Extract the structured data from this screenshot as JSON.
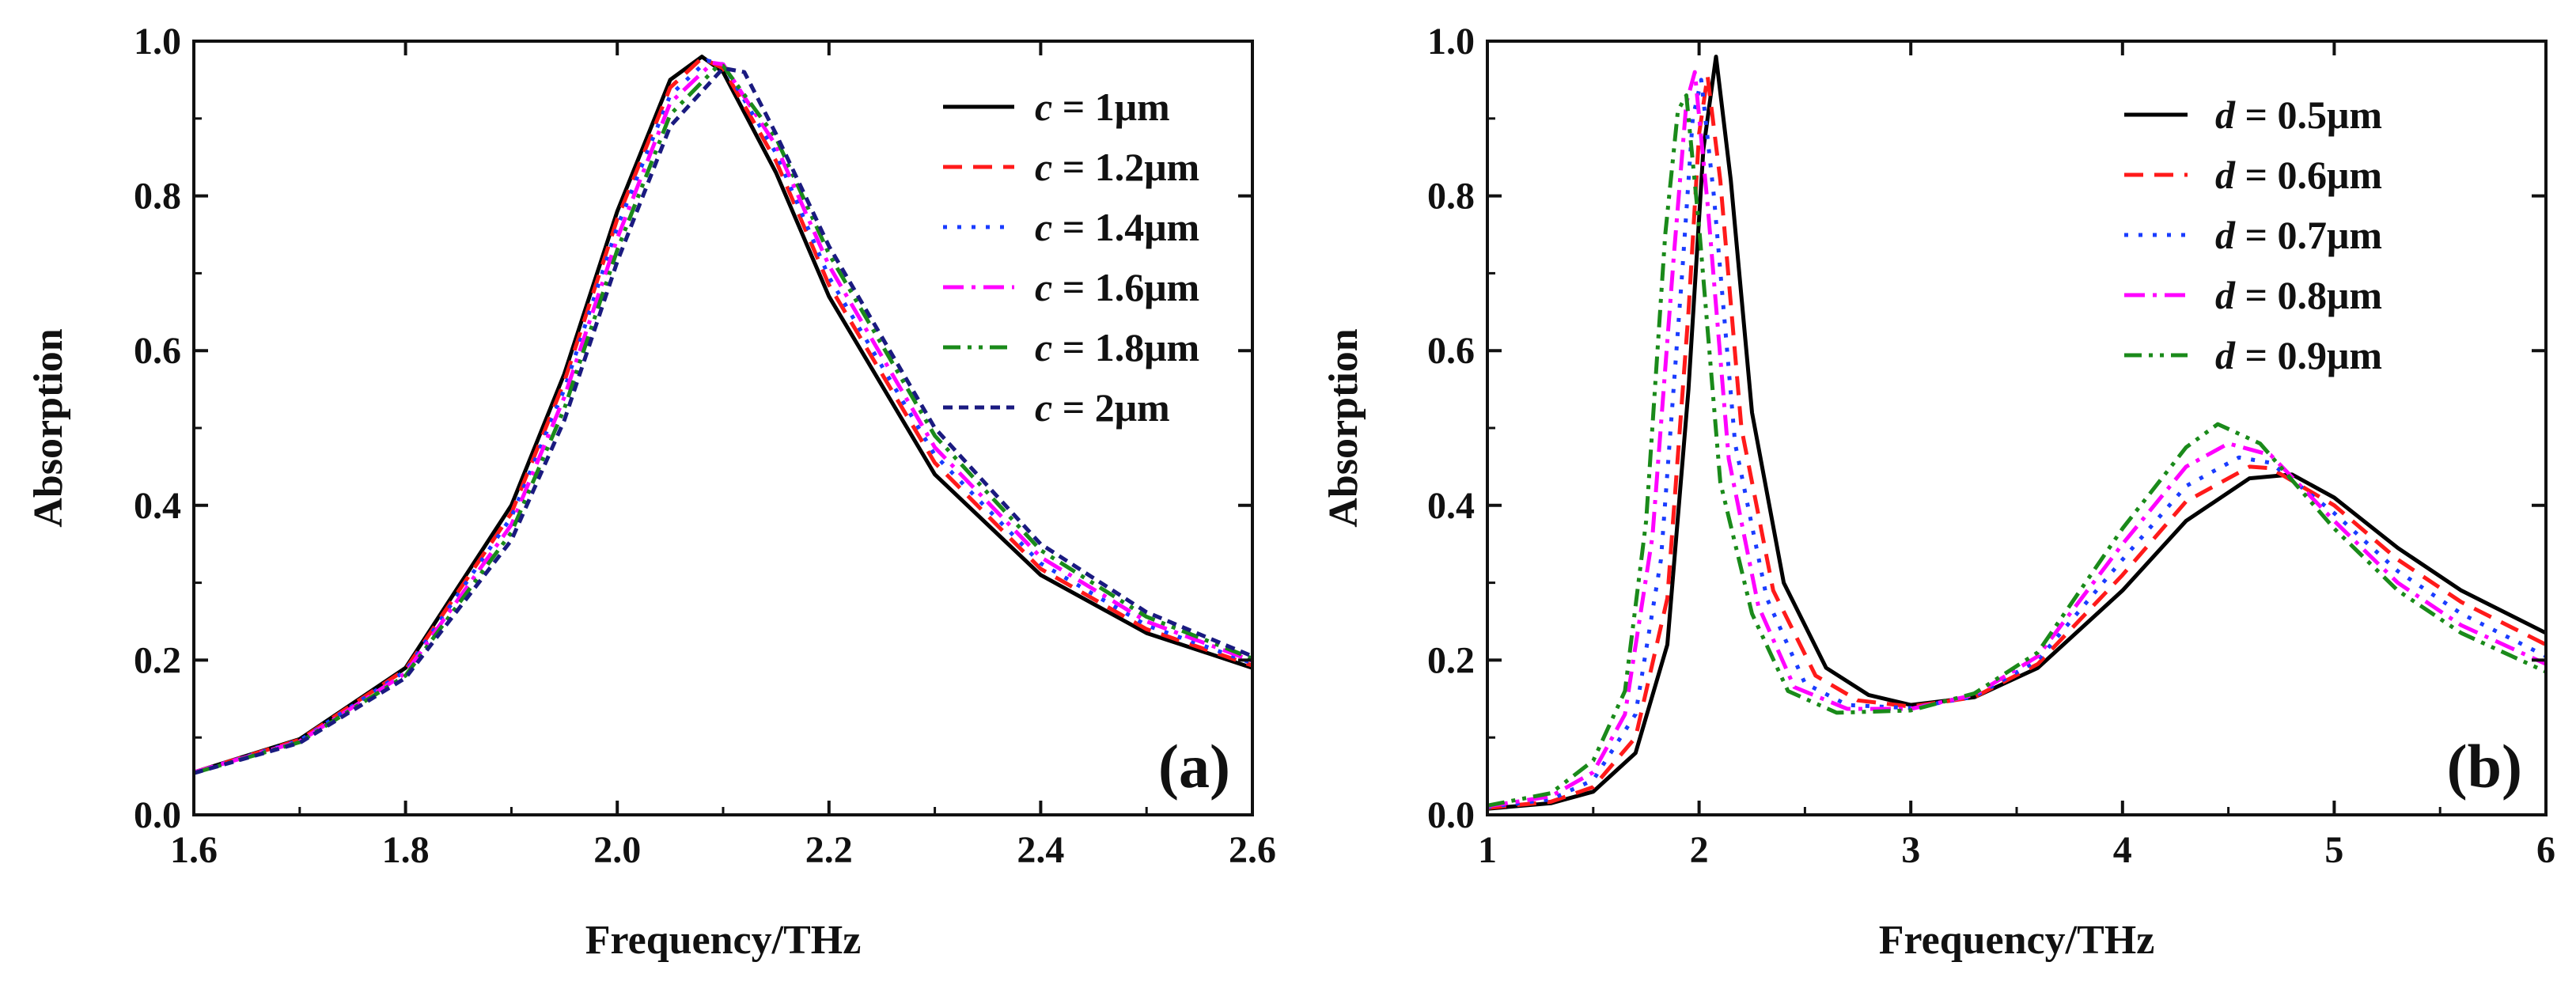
{
  "chart_data": [
    {
      "type": "line",
      "panel_label": "(a)",
      "xlabel": "Frequency/THz",
      "ylabel": "Absorption",
      "xlim": [
        1.6,
        2.6
      ],
      "ylim": [
        0.0,
        1.0
      ],
      "xticks": [
        "1.6",
        "1.8",
        "2.0",
        "2.2",
        "2.4",
        "2.6"
      ],
      "yticks": [
        "0.0",
        "0.2",
        "0.4",
        "0.6",
        "0.8",
        "1.0"
      ],
      "legend_position": "top-right",
      "series": [
        {
          "name": "c = 1μm",
          "var": "c",
          "value": "1μm",
          "color": "#000000",
          "dash": "solid",
          "x": [
            1.6,
            1.7,
            1.8,
            1.9,
            1.95,
            2.0,
            2.05,
            2.08,
            2.1,
            2.15,
            2.2,
            2.3,
            2.4,
            2.5,
            2.6
          ],
          "y": [
            0.055,
            0.098,
            0.19,
            0.4,
            0.57,
            0.78,
            0.95,
            0.98,
            0.96,
            0.83,
            0.67,
            0.44,
            0.31,
            0.235,
            0.19
          ]
        },
        {
          "name": "c = 1.2μm",
          "var": "c",
          "value": "1.2μm",
          "color": "#ff1a1a",
          "dash": "long-dash",
          "x": [
            1.6,
            1.7,
            1.8,
            1.9,
            1.95,
            2.0,
            2.05,
            2.08,
            2.1,
            2.15,
            2.2,
            2.3,
            2.4,
            2.5,
            2.6
          ],
          "y": [
            0.055,
            0.097,
            0.188,
            0.39,
            0.56,
            0.77,
            0.94,
            0.978,
            0.965,
            0.845,
            0.685,
            0.455,
            0.318,
            0.24,
            0.193
          ]
        },
        {
          "name": "c = 1.4μm",
          "var": "c",
          "value": "1.4μm",
          "color": "#1a3cff",
          "dash": "dot",
          "x": [
            1.6,
            1.7,
            1.8,
            1.9,
            1.95,
            2.0,
            2.05,
            2.085,
            2.1,
            2.15,
            2.2,
            2.3,
            2.4,
            2.5,
            2.6
          ],
          "y": [
            0.055,
            0.096,
            0.186,
            0.385,
            0.55,
            0.76,
            0.93,
            0.975,
            0.97,
            0.855,
            0.695,
            0.465,
            0.325,
            0.245,
            0.196
          ]
        },
        {
          "name": "c = 1.6μm",
          "var": "c",
          "value": "1.6μm",
          "color": "#ff00ff",
          "dash": "dash-dot",
          "x": [
            1.6,
            1.7,
            1.8,
            1.9,
            1.95,
            2.0,
            2.05,
            2.09,
            2.1,
            2.15,
            2.2,
            2.3,
            2.4,
            2.5,
            2.6
          ],
          "y": [
            0.055,
            0.095,
            0.183,
            0.375,
            0.54,
            0.745,
            0.92,
            0.972,
            0.97,
            0.865,
            0.71,
            0.475,
            0.333,
            0.25,
            0.199
          ]
        },
        {
          "name": "c = 1.8μm",
          "var": "c",
          "value": "1.8μm",
          "color": "#1a8a1a",
          "dash": "dash-dot-dot",
          "x": [
            1.6,
            1.7,
            1.8,
            1.9,
            1.95,
            2.0,
            2.05,
            2.095,
            2.1,
            2.15,
            2.2,
            2.3,
            2.4,
            2.5,
            2.6
          ],
          "y": [
            0.054,
            0.094,
            0.18,
            0.365,
            0.525,
            0.73,
            0.905,
            0.968,
            0.968,
            0.875,
            0.725,
            0.49,
            0.342,
            0.256,
            0.202
          ]
        },
        {
          "name": "c = 2μm",
          "var": "c",
          "value": "2μm",
          "color": "#1a1a80",
          "dash": "short-dash",
          "x": [
            1.6,
            1.7,
            1.8,
            1.9,
            1.95,
            2.0,
            2.05,
            2.1,
            2.12,
            2.15,
            2.2,
            2.3,
            2.4,
            2.5,
            2.6
          ],
          "y": [
            0.054,
            0.093,
            0.177,
            0.355,
            0.51,
            0.715,
            0.89,
            0.965,
            0.96,
            0.88,
            0.735,
            0.5,
            0.35,
            0.262,
            0.205
          ]
        }
      ]
    },
    {
      "type": "line",
      "panel_label": "(b)",
      "xlabel": "Frequency/THz",
      "ylabel": "Absorption",
      "xlim": [
        1,
        6
      ],
      "ylim": [
        0.0,
        1.0
      ],
      "xticks": [
        "1",
        "2",
        "3",
        "4",
        "5",
        "6"
      ],
      "yticks": [
        "0.0",
        "0.2",
        "0.4",
        "0.6",
        "0.8",
        "1.0"
      ],
      "legend_position": "top-right",
      "series": [
        {
          "name": "d = 0.5μm",
          "var": "d",
          "value": "0.5μm",
          "color": "#000000",
          "dash": "solid",
          "x": [
            1.0,
            1.3,
            1.5,
            1.7,
            1.85,
            1.95,
            2.02,
            2.08,
            2.15,
            2.25,
            2.4,
            2.6,
            2.8,
            3.0,
            3.3,
            3.6,
            4.0,
            4.3,
            4.6,
            4.8,
            5.0,
            5.3,
            5.6,
            6.0
          ],
          "y": [
            0.008,
            0.015,
            0.03,
            0.08,
            0.22,
            0.55,
            0.86,
            0.98,
            0.82,
            0.52,
            0.3,
            0.19,
            0.155,
            0.142,
            0.152,
            0.19,
            0.29,
            0.38,
            0.435,
            0.44,
            0.41,
            0.345,
            0.29,
            0.235
          ]
        },
        {
          "name": "d = 0.6μm",
          "var": "d",
          "value": "0.6μm",
          "color": "#ff1a1a",
          "dash": "long-dash",
          "x": [
            1.0,
            1.3,
            1.5,
            1.7,
            1.85,
            1.95,
            2.0,
            2.04,
            2.1,
            2.2,
            2.35,
            2.55,
            2.75,
            3.0,
            3.3,
            3.6,
            4.0,
            4.3,
            4.6,
            4.7,
            5.0,
            5.3,
            5.6,
            6.0
          ],
          "y": [
            0.009,
            0.017,
            0.036,
            0.1,
            0.28,
            0.65,
            0.88,
            0.955,
            0.82,
            0.5,
            0.29,
            0.18,
            0.148,
            0.14,
            0.152,
            0.195,
            0.31,
            0.405,
            0.45,
            0.448,
            0.4,
            0.33,
            0.275,
            0.22
          ]
        },
        {
          "name": "d = 0.7μm",
          "var": "d",
          "value": "0.7μm",
          "color": "#1a3cff",
          "dash": "dot",
          "x": [
            1.0,
            1.3,
            1.5,
            1.7,
            1.82,
            1.92,
            1.97,
            2.01,
            2.07,
            2.17,
            2.32,
            2.5,
            2.7,
            3.0,
            3.3,
            3.6,
            4.0,
            4.3,
            4.55,
            4.7,
            5.0,
            5.3,
            5.6,
            6.0
          ],
          "y": [
            0.01,
            0.02,
            0.045,
            0.13,
            0.33,
            0.7,
            0.9,
            0.95,
            0.8,
            0.48,
            0.28,
            0.17,
            0.142,
            0.138,
            0.153,
            0.2,
            0.33,
            0.425,
            0.462,
            0.455,
            0.39,
            0.315,
            0.26,
            0.205
          ]
        },
        {
          "name": "d = 0.8μm",
          "var": "d",
          "value": "0.8μm",
          "color": "#ff00ff",
          "dash": "dash-dot",
          "x": [
            1.0,
            1.3,
            1.5,
            1.65,
            1.78,
            1.88,
            1.94,
            1.98,
            2.04,
            2.14,
            2.28,
            2.45,
            2.7,
            3.0,
            3.3,
            3.6,
            4.0,
            4.3,
            4.5,
            4.7,
            5.0,
            5.3,
            5.6,
            6.0
          ],
          "y": [
            0.011,
            0.024,
            0.055,
            0.13,
            0.36,
            0.72,
            0.92,
            0.96,
            0.79,
            0.46,
            0.27,
            0.165,
            0.137,
            0.137,
            0.155,
            0.205,
            0.35,
            0.45,
            0.48,
            0.465,
            0.38,
            0.3,
            0.245,
            0.195
          ]
        },
        {
          "name": "d = 0.9μm",
          "var": "d",
          "value": "0.9μm",
          "color": "#1a8a1a",
          "dash": "dash-dot-dot",
          "x": [
            1.0,
            1.3,
            1.5,
            1.65,
            1.75,
            1.84,
            1.9,
            1.94,
            2.0,
            2.1,
            2.25,
            2.42,
            2.65,
            3.0,
            3.3,
            3.6,
            4.0,
            4.3,
            4.45,
            4.65,
            5.0,
            5.3,
            5.6,
            6.0
          ],
          "y": [
            0.012,
            0.028,
            0.07,
            0.16,
            0.38,
            0.75,
            0.91,
            0.93,
            0.76,
            0.43,
            0.26,
            0.16,
            0.132,
            0.135,
            0.157,
            0.21,
            0.37,
            0.475,
            0.505,
            0.48,
            0.37,
            0.29,
            0.235,
            0.185
          ]
        }
      ]
    }
  ]
}
